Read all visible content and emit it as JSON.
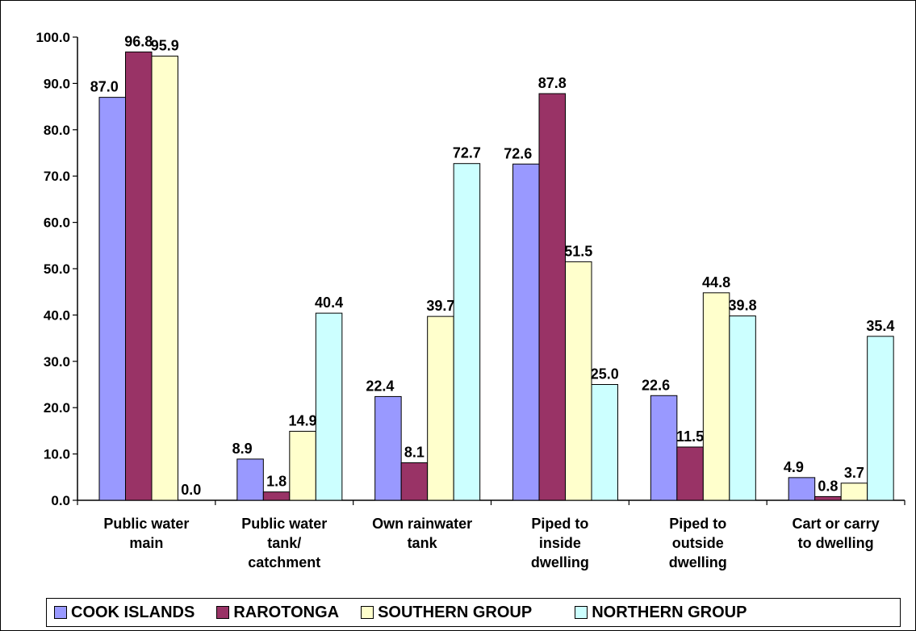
{
  "chart_data": {
    "type": "bar",
    "title": "",
    "xlabel": "",
    "ylabel": "",
    "ylim": [
      0,
      100
    ],
    "yticks": [
      "0.0",
      "10.0",
      "20.0",
      "30.0",
      "40.0",
      "50.0",
      "60.0",
      "70.0",
      "80.0",
      "90.0",
      "100.0"
    ],
    "grid": false,
    "legend_position": "bottom",
    "categories": [
      [
        "Public water",
        "main"
      ],
      [
        "Public water",
        "tank/",
        "catchment"
      ],
      [
        "Own rainwater",
        "tank"
      ],
      [
        "Piped to",
        "inside",
        "dwelling"
      ],
      [
        "Piped to",
        "outside",
        "dwelling"
      ],
      [
        "Cart or carry",
        "to dwelling"
      ]
    ],
    "series": [
      {
        "name": "COOK ISLANDS",
        "color": "#9999ff",
        "values": [
          87.0,
          8.9,
          22.4,
          72.6,
          22.6,
          4.9
        ],
        "labels": [
          "87.0",
          "8.9",
          "22.4",
          "72.6",
          "22.6",
          "4.9"
        ]
      },
      {
        "name": "RAROTONGA",
        "color": "#993366",
        "values": [
          96.8,
          1.8,
          8.1,
          87.8,
          11.5,
          0.8
        ],
        "labels": [
          "96.8",
          "1.8",
          "8.1",
          "87.8",
          "11.5",
          "0.8"
        ]
      },
      {
        "name": "SOUTHERN GROUP",
        "color": "#ffffcc",
        "values": [
          95.9,
          14.9,
          39.7,
          51.5,
          44.8,
          3.7
        ],
        "labels": [
          "95.9",
          "14.9",
          "39.7",
          "51.5",
          "44.8",
          "3.7"
        ]
      },
      {
        "name": "NORTHERN GROUP",
        "color": "#ccffff",
        "values": [
          0.0,
          40.4,
          72.7,
          25.0,
          39.8,
          35.4
        ],
        "labels": [
          "0.0",
          "40.4",
          "72.7",
          "25.0",
          "39.8",
          "35.4"
        ]
      }
    ]
  }
}
